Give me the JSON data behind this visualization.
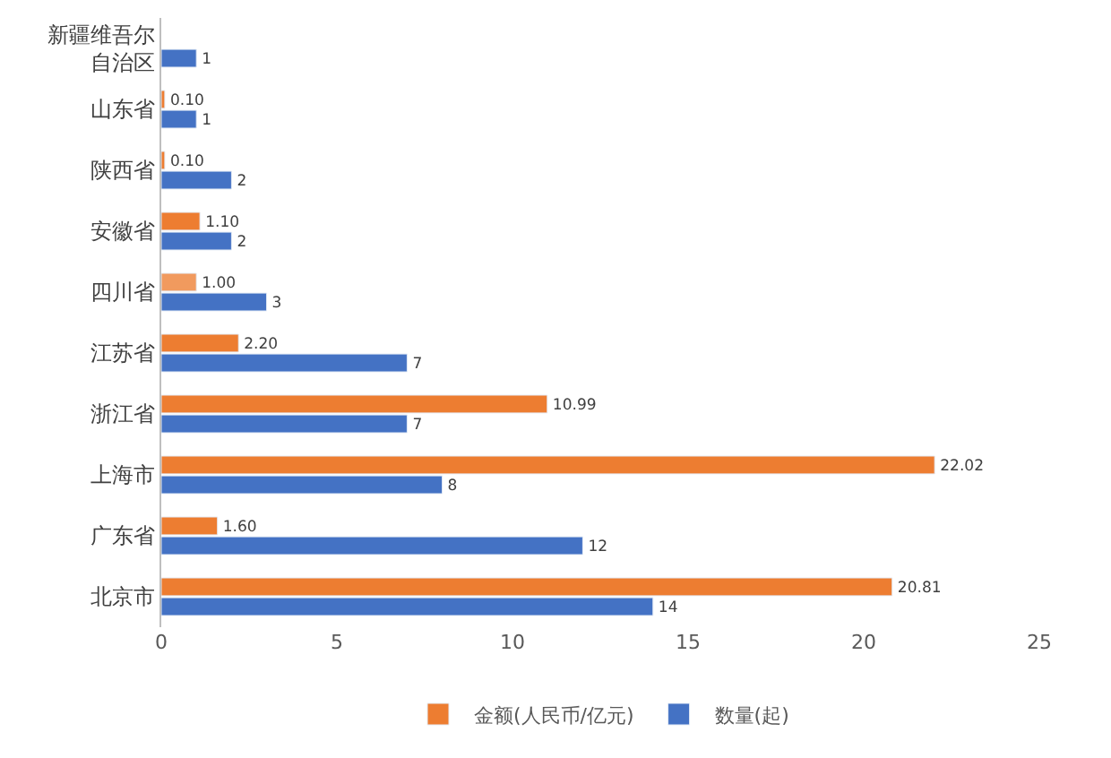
{
  "chart_data": {
    "type": "bar",
    "orientation": "horizontal",
    "categories": [
      "新疆维吾尔自治区",
      "山东省",
      "陕西省",
      "安徽省",
      "四川省",
      "江苏省",
      "浙江省",
      "上海市",
      "广东省",
      "北京市"
    ],
    "series": [
      {
        "name": "金额(人民币/亿元)",
        "color": "#ed7d31",
        "colors": [
          "#ed7d31",
          "#ed7d31",
          "#ed7d31",
          "#ed7d31",
          "#f19a5e",
          "#ed7d31",
          "#ed7d31",
          "#ed7d31",
          "#ed7d31",
          "#ed7d31"
        ],
        "values": [
          null,
          0.1,
          0.1,
          1.1,
          1.0,
          2.2,
          10.99,
          22.02,
          1.6,
          20.81
        ],
        "value_labels": [
          null,
          "0.10",
          "0.10",
          "1.10",
          "1.00",
          "2.20",
          "10.99",
          "22.02",
          "1.60",
          "20.81"
        ]
      },
      {
        "name": "数量(起)",
        "color": "#4472c4",
        "values": [
          1,
          1,
          2,
          2,
          3,
          7,
          7,
          8,
          12,
          14
        ],
        "value_labels": [
          "1",
          "1",
          "2",
          "2",
          "3",
          "7",
          "7",
          "8",
          "12",
          "14"
        ]
      }
    ],
    "xlim": [
      0,
      25
    ],
    "xticks": [
      0,
      5,
      10,
      15,
      20,
      25
    ],
    "grid": false,
    "legend": "bottom"
  }
}
